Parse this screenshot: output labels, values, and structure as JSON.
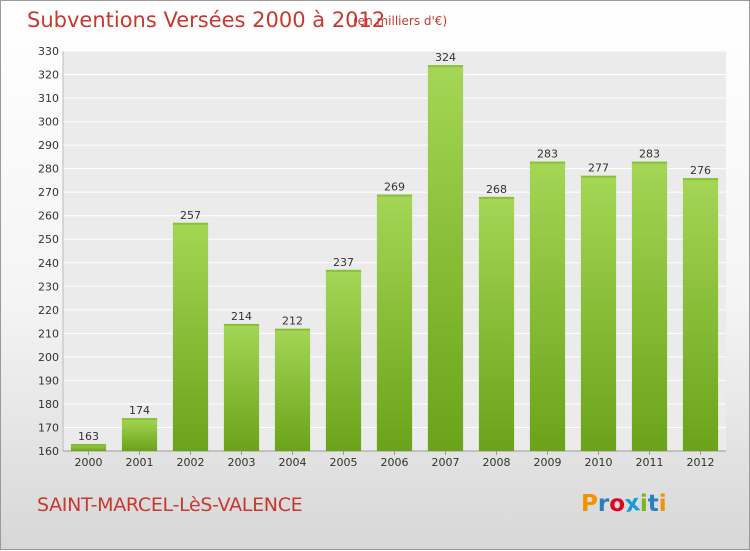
{
  "header": {
    "title": "Subventions Versées 2000 à 2012",
    "subtitle": "(en milliers d'€)"
  },
  "footer": {
    "commune": "SAINT-MARCEL-LèS-VALENCE",
    "logo_letters": [
      "P",
      "r",
      "o",
      "x",
      "i",
      "t",
      "i"
    ],
    "logo_colors": [
      "#f39200",
      "#2a7fc0",
      "#e2001a",
      "#1a9ad7",
      "#7ab51d",
      "#2a7fc0",
      "#f39200"
    ]
  },
  "colors": {
    "bar_light": "#a5d656",
    "bar_dark": "#6aa319",
    "grid": "#ffffff",
    "text": "#333333",
    "accent": "#c8382f"
  },
  "chart_data": {
    "type": "bar",
    "categories": [
      "2000",
      "2001",
      "2002",
      "2003",
      "2004",
      "2005",
      "2006",
      "2007",
      "2008",
      "2009",
      "2010",
      "2011",
      "2012"
    ],
    "values": [
      163,
      174,
      257,
      214,
      212,
      237,
      269,
      324,
      268,
      283,
      277,
      283,
      276
    ],
    "ylim": [
      160,
      330
    ],
    "yticks": [
      160,
      170,
      180,
      190,
      200,
      210,
      220,
      230,
      240,
      250,
      260,
      270,
      280,
      290,
      300,
      310,
      320,
      330
    ],
    "grid": true,
    "data_labels": true
  }
}
